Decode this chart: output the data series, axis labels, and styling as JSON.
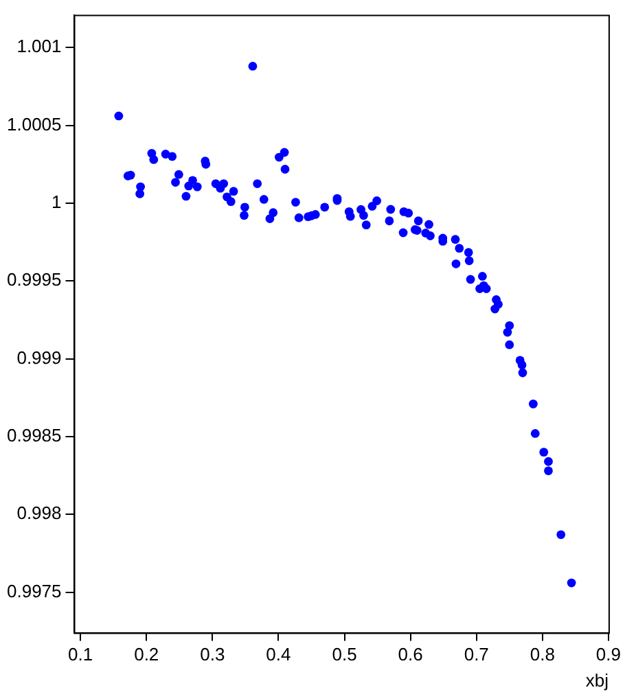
{
  "chart_data": {
    "type": "scatter",
    "xlabel": "xbj",
    "marker": "circle",
    "grid": false,
    "legend": false,
    "xlim": [
      0.09,
      0.9
    ],
    "ylim": [
      0.99724,
      1.00121
    ],
    "xticks": [
      0.1,
      0.2,
      0.3,
      0.4,
      0.5,
      0.6,
      0.7,
      0.8,
      0.9
    ],
    "yticks": [
      0.9975,
      0.998,
      0.9985,
      0.999,
      0.9995,
      1,
      1.0005,
      1.001
    ],
    "series": [
      {
        "color": "#0000ff",
        "x": [
          0.158,
          0.361,
          0.172,
          0.176,
          0.191,
          0.19,
          0.208,
          0.211,
          0.229,
          0.239,
          0.244,
          0.249,
          0.26,
          0.27,
          0.264,
          0.277,
          0.289,
          0.29,
          0.305,
          0.312,
          0.317,
          0.322,
          0.328,
          0.332,
          0.349,
          0.348,
          0.368,
          0.378,
          0.392,
          0.387,
          0.401,
          0.409,
          0.41,
          0.426,
          0.431,
          0.445,
          0.45,
          0.456,
          0.47,
          0.489,
          0.489,
          0.507,
          0.509,
          0.525,
          0.529,
          0.533,
          0.542,
          0.549,
          0.57,
          0.568,
          0.59,
          0.597,
          0.589,
          0.612,
          0.607,
          0.61,
          0.628,
          0.623,
          0.63,
          0.649,
          0.649,
          0.668,
          0.674,
          0.669,
          0.688,
          0.689,
          0.691,
          0.709,
          0.711,
          0.715,
          0.705,
          0.73,
          0.733,
          0.728,
          0.75,
          0.747,
          0.75,
          0.766,
          0.769,
          0.77,
          0.786,
          0.789,
          0.802,
          0.809,
          0.809,
          0.828,
          0.844
        ],
        "values": [
          1.00056,
          1.00088,
          1.000175,
          1.00018,
          1.000105,
          1.00006,
          1.00032,
          1.00028,
          1.000315,
          1.0003,
          1.000134,
          1.000184,
          1.000044,
          1.000146,
          1.00011,
          1.000105,
          1.00027,
          1.00025,
          1.000125,
          1.000096,
          1.000125,
          1.00004,
          1.00001,
          1.000076,
          0.999974,
          0.999921,
          1.000125,
          1.000024,
          0.999939,
          0.9999,
          1.000295,
          1.000326,
          1.000218,
          1.000006,
          0.999906,
          0.999913,
          0.999919,
          0.999927,
          0.999974,
          1.000017,
          1.00003,
          0.999945,
          0.999915,
          0.999959,
          0.999921,
          0.99986,
          0.99998,
          1.000015,
          0.99996,
          0.999886,
          0.999945,
          0.999936,
          0.99981,
          0.999886,
          0.99983,
          0.999825,
          0.999863,
          0.999808,
          0.99979,
          0.999775,
          0.999755,
          0.999767,
          0.99971,
          0.99961,
          0.999683,
          0.99963,
          0.99951,
          0.99953,
          0.99947,
          0.99945,
          0.99945,
          0.99938,
          0.99935,
          0.99932,
          0.999213,
          0.99917,
          0.99909,
          0.99899,
          0.99896,
          0.99891,
          0.99871,
          0.99852,
          0.9984,
          0.99834,
          0.99828,
          0.99787,
          0.99756
        ]
      }
    ]
  }
}
